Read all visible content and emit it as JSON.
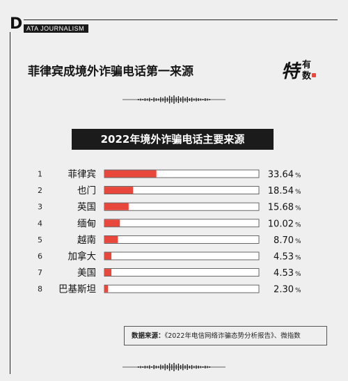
{
  "brand": {
    "initial": "D",
    "text": "ATA JOURNALISM"
  },
  "title": "菲律宾成境外诈骗电话第一来源",
  "logo": {
    "big": "特",
    "top": "有",
    "bottom": "数",
    "accent": "#e8473b"
  },
  "subtitle": "2022年境外诈骗电话主要来源",
  "source": {
    "label": "数据来源：",
    "text": "《2022年电信网络诈骗态势分析报告》、微指数"
  },
  "colors": {
    "bar": "#e8473b",
    "track": "#ffffff",
    "track_border": "#444444",
    "background": "#efefef"
  },
  "chart_data": {
    "type": "bar",
    "orientation": "horizontal",
    "title": "2022年境外诈骗电话主要来源",
    "ranks": [
      "1",
      "2",
      "3",
      "4",
      "5",
      "6",
      "7",
      "8"
    ],
    "categories": [
      "菲律宾",
      "也门",
      "英国",
      "缅甸",
      "越南",
      "加拿大",
      "美国",
      "巴基斯坦"
    ],
    "values": [
      33.64,
      18.54,
      15.68,
      10.02,
      8.7,
      4.53,
      4.53,
      2.3
    ],
    "value_labels": [
      "33.64",
      "18.54",
      "15.68",
      "10.02",
      "8.70",
      "4.53",
      "4.53",
      "2.30"
    ],
    "unit": "%",
    "xlim": [
      0,
      100
    ]
  }
}
